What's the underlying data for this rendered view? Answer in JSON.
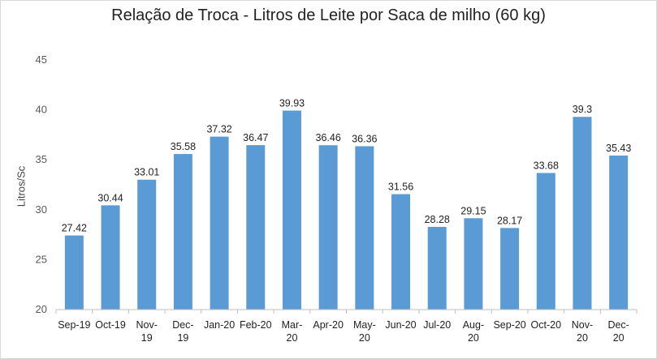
{
  "chart_data": {
    "type": "bar",
    "title": "Relação de Troca - Litros de Leite por Saca de milho (60 kg)",
    "xlabel": "",
    "ylabel": "Litros/Sc",
    "ylim": [
      20,
      45
    ],
    "yticks": [
      20,
      25,
      30,
      35,
      40,
      45
    ],
    "grid": false,
    "categories": [
      [
        "Sep-19"
      ],
      [
        "Oct-19"
      ],
      [
        "Nov-",
        "19"
      ],
      [
        "Dec-",
        "19"
      ],
      [
        "Jan-20"
      ],
      [
        "Feb-20"
      ],
      [
        "Mar-",
        "20"
      ],
      [
        "Apr-20"
      ],
      [
        "May-",
        "20"
      ],
      [
        "Jun-20"
      ],
      [
        "Jul-20"
      ],
      [
        "Aug-",
        "20"
      ],
      [
        "Sep-20"
      ],
      [
        "Oct-20"
      ],
      [
        "Nov-",
        "20"
      ],
      [
        "Dec-",
        "20"
      ]
    ],
    "values": [
      27.42,
      30.44,
      33.01,
      35.58,
      37.32,
      36.47,
      39.93,
      36.46,
      36.36,
      31.56,
      28.28,
      29.15,
      28.17,
      33.68,
      39.3,
      35.43
    ],
    "data_labels": [
      "27.42",
      "30.44",
      "33.01",
      "35.58",
      "37.32",
      "36.47",
      "39.93",
      "36.46",
      "36.36",
      "31.56",
      "28.28",
      "29.15",
      "28.17",
      "33.68",
      "39.3",
      "35.43"
    ],
    "bar_color": "#5b9bd5"
  }
}
